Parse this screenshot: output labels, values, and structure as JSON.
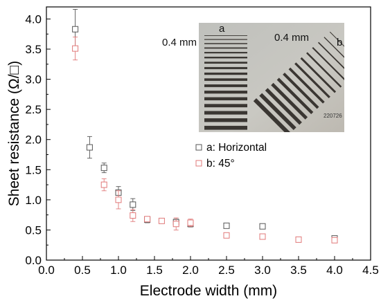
{
  "chart_data": {
    "type": "scatter",
    "title": "",
    "xlabel": "Electrode width (mm)",
    "ylabel": "Sheet resistance (Ω/□)",
    "xlim": [
      0.0,
      4.5
    ],
    "ylim": [
      0.0,
      4.2
    ],
    "x_ticks": [
      "0.0",
      "0.5",
      "1.0",
      "1.5",
      "2.0",
      "2.5",
      "3.0",
      "3.5",
      "4.0",
      "4.5"
    ],
    "y_ticks": [
      "0.0",
      "0.5",
      "1.0",
      "1.5",
      "2.0",
      "2.5",
      "3.0",
      "3.5",
      "4.0"
    ],
    "grid": false,
    "legend_position": "middle-right",
    "series": [
      {
        "name": "a: Horizontal",
        "color": "#555555",
        "marker": "open-square",
        "points": [
          {
            "x": 0.4,
            "y": 3.83,
            "err": 0.33
          },
          {
            "x": 0.6,
            "y": 1.87,
            "err": 0.18
          },
          {
            "x": 0.8,
            "y": 1.53,
            "err": 0.08
          },
          {
            "x": 1.0,
            "y": 1.12,
            "err": 0.1
          },
          {
            "x": 1.2,
            "y": 0.92,
            "err": 0.1
          },
          {
            "x": 1.4,
            "y": 0.67,
            "err": 0.05
          },
          {
            "x": 1.8,
            "y": 0.63,
            "err": 0.05
          },
          {
            "x": 2.0,
            "y": 0.6,
            "err": 0.05
          },
          {
            "x": 2.5,
            "y": 0.57,
            "err": 0.03
          },
          {
            "x": 3.0,
            "y": 0.56,
            "err": 0.03
          },
          {
            "x": 4.0,
            "y": 0.36,
            "err": 0.03
          }
        ]
      },
      {
        "name": "b: 45°",
        "color": "#e07878",
        "marker": "open-square",
        "points": [
          {
            "x": 0.4,
            "y": 3.51,
            "err": 0.19
          },
          {
            "x": 0.8,
            "y": 1.25,
            "err": 0.1
          },
          {
            "x": 1.0,
            "y": 1.0,
            "err": 0.15
          },
          {
            "x": 1.2,
            "y": 0.74,
            "err": 0.1
          },
          {
            "x": 1.4,
            "y": 0.68,
            "err": 0.04
          },
          {
            "x": 1.6,
            "y": 0.65,
            "err": 0.03
          },
          {
            "x": 1.8,
            "y": 0.6,
            "err": 0.1
          },
          {
            "x": 2.0,
            "y": 0.62,
            "err": 0.06
          },
          {
            "x": 2.5,
            "y": 0.41,
            "err": 0.03
          },
          {
            "x": 3.0,
            "y": 0.39,
            "err": 0.03
          },
          {
            "x": 3.5,
            "y": 0.34,
            "err": 0.03
          },
          {
            "x": 4.0,
            "y": 0.33,
            "err": 0.03
          }
        ]
      }
    ]
  },
  "inset": {
    "label_a": "a",
    "label_b": "b",
    "spacing_a": "0.4 mm",
    "spacing_b": "0.4 mm",
    "sample_id": "220726"
  }
}
